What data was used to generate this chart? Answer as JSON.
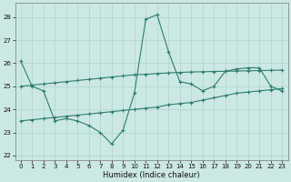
{
  "xlabel": "Humidex (Indice chaleur)",
  "line1_x": [
    0,
    1,
    2,
    3,
    4,
    5,
    6,
    7,
    8,
    9,
    10,
    11,
    12,
    13,
    14,
    15,
    16,
    17,
    18,
    19,
    20,
    21,
    22,
    23
  ],
  "line1_y": [
    26.1,
    25.0,
    24.8,
    23.5,
    23.6,
    23.5,
    23.3,
    23.0,
    22.5,
    23.1,
    24.7,
    27.9,
    28.1,
    26.5,
    25.2,
    25.1,
    24.8,
    25.0,
    25.65,
    25.75,
    25.8,
    25.8,
    25.0,
    24.8
  ],
  "line2_x": [
    0,
    1,
    2,
    3,
    4,
    5,
    6,
    7,
    8,
    9,
    10,
    11,
    12,
    13,
    14,
    15,
    16,
    17,
    18,
    19,
    20,
    21,
    22,
    23
  ],
  "line2_y": [
    25.0,
    25.05,
    25.1,
    25.15,
    25.2,
    25.25,
    25.3,
    25.35,
    25.4,
    25.45,
    25.5,
    25.52,
    25.55,
    25.58,
    25.6,
    25.62,
    25.63,
    25.64,
    25.65,
    25.66,
    25.67,
    25.68,
    25.69,
    25.7
  ],
  "line3_x": [
    0,
    1,
    2,
    3,
    4,
    5,
    6,
    7,
    8,
    9,
    10,
    11,
    12,
    13,
    14,
    15,
    16,
    17,
    18,
    19,
    20,
    21,
    22,
    23
  ],
  "line3_y": [
    23.5,
    23.55,
    23.6,
    23.65,
    23.7,
    23.75,
    23.8,
    23.85,
    23.9,
    23.95,
    24.0,
    24.05,
    24.1,
    24.2,
    24.25,
    24.3,
    24.4,
    24.5,
    24.6,
    24.7,
    24.75,
    24.8,
    24.85,
    24.9
  ],
  "line_color": "#2e7d6e",
  "bg_color": "#cce8e4",
  "grid_color": "#aed4ce",
  "ylim": [
    21.8,
    28.6
  ],
  "xlim": [
    -0.5,
    23.5
  ],
  "yticks": [
    22,
    23,
    24,
    25,
    26,
    27,
    28
  ],
  "xticks": [
    0,
    1,
    2,
    3,
    4,
    5,
    6,
    7,
    8,
    9,
    10,
    11,
    12,
    13,
    14,
    15,
    16,
    17,
    18,
    19,
    20,
    21,
    22,
    23
  ]
}
